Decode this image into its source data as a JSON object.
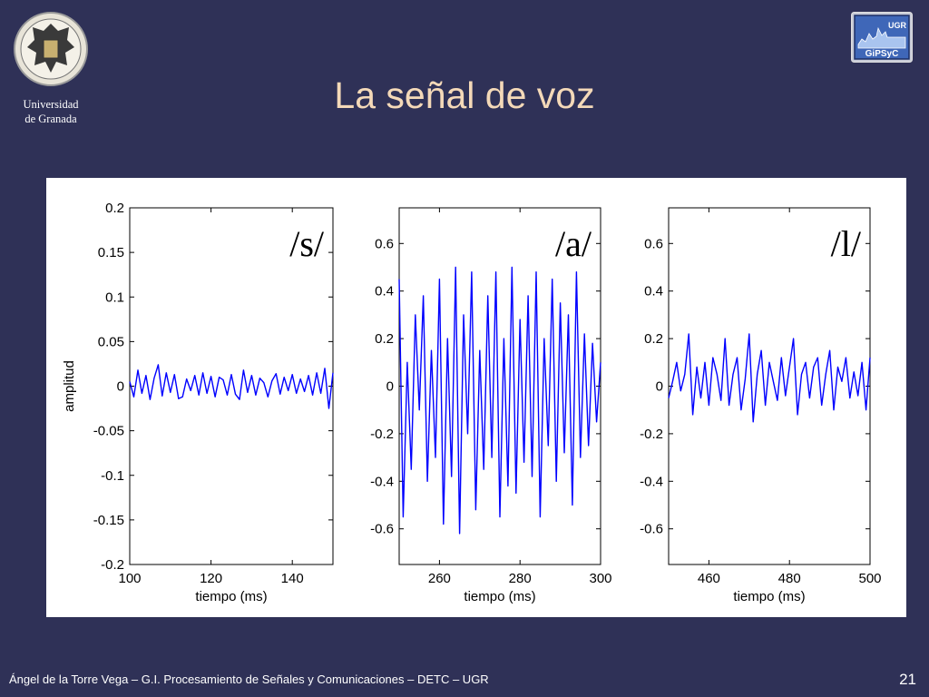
{
  "header": {
    "university_line1": "Universidad",
    "university_line2": "de Granada",
    "badge_top": "UGR",
    "badge_bottom": "GiPSyC"
  },
  "slide": {
    "title": "La señal de voz"
  },
  "footer": {
    "text": "Ángel de la Torre Vega – G.I. Procesamiento de Señales y Comunicaciones – DETC – UGR",
    "page_number": "21"
  },
  "colors": {
    "background": "#2f3157",
    "title": "#f4d9b8",
    "signal": "#0000ff"
  },
  "chart_data": [
    {
      "type": "line",
      "label": "/s/",
      "xlabel": "tiempo (ms)",
      "ylabel": "amplitud",
      "xlim": [
        100,
        150
      ],
      "ylim": [
        -0.2,
        0.2
      ],
      "xticks": [
        100,
        120,
        140
      ],
      "yticks": [
        0.2,
        0.15,
        0.1,
        0.05,
        0,
        -0.05,
        -0.1,
        -0.15,
        -0.2
      ],
      "ytick_labels": [
        "0.2",
        "0.15",
        "0.1",
        "0.05",
        "0",
        "-0.05",
        "-0.1",
        "-0.15",
        "-0.2"
      ],
      "series": [
        {
          "x": [
            100,
            101,
            102,
            103,
            104,
            105,
            106,
            107,
            108,
            109,
            110,
            111,
            112,
            113,
            114,
            115,
            116,
            117,
            118,
            119,
            120,
            121,
            122,
            123,
            124,
            125,
            126,
            127,
            128,
            129,
            130,
            131,
            132,
            133,
            134,
            135,
            136,
            137,
            138,
            139,
            140,
            141,
            142,
            143,
            144,
            145,
            146,
            147,
            148,
            149,
            150
          ],
          "values": [
            0.005,
            -0.012,
            0.018,
            -0.008,
            0.012,
            -0.015,
            0.009,
            0.024,
            -0.011,
            0.015,
            -0.007,
            0.013,
            -0.014,
            -0.012,
            0.008,
            -0.005,
            0.012,
            -0.01,
            0.015,
            -0.008,
            0.011,
            -0.012,
            0.01,
            0.007,
            -0.01,
            0.013,
            -0.009,
            -0.015,
            0.018,
            -0.007,
            0.012,
            -0.01,
            0.009,
            0.004,
            -0.012,
            0.006,
            0.014,
            -0.009,
            0.01,
            -0.005,
            0.013,
            -0.008,
            0.008,
            -0.006,
            0.012,
            -0.01,
            0.015,
            -0.008,
            0.02,
            -0.025,
            0.015
          ]
        }
      ]
    },
    {
      "type": "line",
      "label": "/a/",
      "xlabel": "tiempo (ms)",
      "ylabel": "",
      "xlim": [
        250,
        300
      ],
      "ylim": [
        -0.75,
        0.75
      ],
      "xticks": [
        260,
        280,
        300
      ],
      "yticks": [
        0.6,
        0.4,
        0.2,
        0,
        -0.2,
        -0.4,
        -0.6
      ],
      "ytick_labels": [
        "0.6",
        "0.4",
        "0.2",
        "0",
        "-0.2",
        "-0.4",
        "-0.6"
      ],
      "series": [
        {
          "x": [
            250,
            251,
            252,
            253,
            254,
            255,
            256,
            257,
            258,
            259,
            260,
            261,
            262,
            263,
            264,
            265,
            266,
            267,
            268,
            269,
            270,
            271,
            272,
            273,
            274,
            275,
            276,
            277,
            278,
            279,
            280,
            281,
            282,
            283,
            284,
            285,
            286,
            287,
            288,
            289,
            290,
            291,
            292,
            293,
            294,
            295,
            296,
            297,
            298,
            299,
            300
          ],
          "values": [
            0.45,
            -0.55,
            0.1,
            -0.35,
            0.3,
            -0.1,
            0.38,
            -0.4,
            0.15,
            -0.3,
            0.45,
            -0.58,
            0.2,
            -0.38,
            0.5,
            -0.62,
            0.3,
            -0.2,
            0.48,
            -0.52,
            0.15,
            -0.35,
            0.38,
            -0.3,
            0.48,
            -0.55,
            0.2,
            -0.42,
            0.5,
            -0.45,
            0.28,
            -0.32,
            0.38,
            -0.38,
            0.48,
            -0.55,
            0.2,
            -0.25,
            0.45,
            -0.4,
            0.35,
            -0.28,
            0.3,
            -0.5,
            0.48,
            -0.3,
            0.22,
            -0.25,
            0.18,
            -0.15,
            0.1
          ]
        }
      ]
    },
    {
      "type": "line",
      "label": "/l/",
      "xlabel": "tiempo (ms)",
      "ylabel": "",
      "xlim": [
        450,
        500
      ],
      "ylim": [
        -0.75,
        0.75
      ],
      "xticks": [
        460,
        480,
        500
      ],
      "yticks": [
        0.6,
        0.4,
        0.2,
        0,
        -0.2,
        -0.4,
        -0.6
      ],
      "ytick_labels": [
        "0.6",
        "0.4",
        "0.2",
        "0",
        "-0.2",
        "-0.4",
        "-0.6"
      ],
      "series": [
        {
          "x": [
            450,
            451,
            452,
            453,
            454,
            455,
            456,
            457,
            458,
            459,
            460,
            461,
            462,
            463,
            464,
            465,
            466,
            467,
            468,
            469,
            470,
            471,
            472,
            473,
            474,
            475,
            476,
            477,
            478,
            479,
            480,
            481,
            482,
            483,
            484,
            485,
            486,
            487,
            488,
            489,
            490,
            491,
            492,
            493,
            494,
            495,
            496,
            497,
            498,
            499,
            500
          ],
          "values": [
            -0.05,
            0.02,
            0.1,
            -0.02,
            0.05,
            0.22,
            -0.12,
            0.08,
            -0.05,
            0.1,
            -0.08,
            0.12,
            0.05,
            -0.06,
            0.2,
            -0.08,
            0.05,
            0.12,
            -0.1,
            0.03,
            0.22,
            -0.15,
            0.05,
            0.15,
            -0.08,
            0.1,
            0.02,
            -0.06,
            0.12,
            -0.04,
            0.08,
            0.2,
            -0.12,
            0.05,
            0.1,
            -0.05,
            0.08,
            0.12,
            -0.08,
            0.05,
            0.15,
            -0.1,
            0.08,
            0.02,
            0.12,
            -0.05,
            0.06,
            -0.04,
            0.1,
            -0.1,
            0.12
          ]
        }
      ]
    }
  ]
}
